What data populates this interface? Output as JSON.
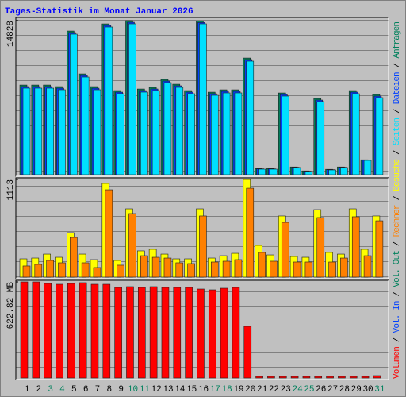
{
  "title": "Tages-Statistik im Monat Januar 2026",
  "legend_separator": "/",
  "categories": [
    "1",
    "2",
    "3",
    "4",
    "5",
    "6",
    "7",
    "8",
    "9",
    "10",
    "11",
    "12",
    "13",
    "14",
    "15",
    "16",
    "17",
    "18",
    "19",
    "20",
    "21",
    "22",
    "23",
    "24",
    "25",
    "26",
    "27",
    "28",
    "29",
    "30",
    "31"
  ],
  "category_colors": [
    "#000000",
    "#000000",
    "#00805c",
    "#00805c",
    "#000000",
    "#000000",
    "#000000",
    "#000000",
    "#000000",
    "#00805c",
    "#00805c",
    "#000000",
    "#000000",
    "#000000",
    "#000000",
    "#000000",
    "#00805c",
    "#00805c",
    "#000000",
    "#000000",
    "#000000",
    "#000000",
    "#000000",
    "#00805c",
    "#00805c",
    "#000000",
    "#000000",
    "#000000",
    "#000000",
    "#000000",
    "#00805c"
  ],
  "chart_data": [
    {
      "type": "bar",
      "ylim": [
        0,
        14828
      ],
      "yticks": [
        14828
      ],
      "series": [
        {
          "name": "Anfragen",
          "color": "#00805c",
          "values": [
            8631,
            8631,
            8631,
            8478,
            13829,
            9701,
            8478,
            14517,
            8096,
            14828,
            8249,
            8402,
            9166,
            8708,
            8096,
            14790,
            7943,
            8173,
            8173,
            11230,
            595,
            595,
            7867,
            748,
            366,
            7332,
            519,
            748,
            8096,
            1436,
            7714
          ]
        },
        {
          "name": "Dateien",
          "color": "#0040ff",
          "values": [
            8481,
            8481,
            8481,
            8328,
            13679,
            9551,
            8328,
            14367,
            7946,
            14672,
            8099,
            8252,
            9016,
            8558,
            7946,
            14650,
            7793,
            8023,
            8023,
            11080,
            565,
            565,
            7717,
            718,
            336,
            7182,
            489,
            718,
            7946,
            1406,
            7564
          ]
        },
        {
          "name": "Seiten",
          "color": "#00e0ff",
          "values": [
            8331,
            8331,
            8331,
            8178,
            13529,
            9401,
            8178,
            14217,
            7796,
            14522,
            7949,
            8102,
            8866,
            8408,
            7796,
            14522,
            7643,
            7873,
            7873,
            10930,
            535,
            535,
            7567,
            688,
            306,
            7032,
            459,
            688,
            7796,
            1376,
            7414
          ]
        }
      ]
    },
    {
      "type": "bar",
      "ylim": [
        0,
        1113
      ],
      "yticks": [
        1113
      ],
      "series": [
        {
          "name": "Besuche",
          "color": "#ffff00",
          "values": [
            208,
            217,
            262,
            226,
            507,
            262,
            199,
            1068,
            190,
            778,
            299,
            317,
            262,
            208,
            208,
            778,
            217,
            244,
            271,
            1113,
            362,
            253,
            697,
            235,
            226,
            769,
            281,
            262,
            778,
            317,
            697
          ]
        },
        {
          "name": "Rechner",
          "color": "#ff8000",
          "values": [
            127,
            145,
            190,
            163,
            452,
            163,
            109,
            995,
            136,
            724,
            244,
            226,
            217,
            163,
            154,
            697,
            172,
            181,
            199,
            1013,
            281,
            181,
            624,
            172,
            172,
            679,
            172,
            217,
            688,
            244,
            642
          ]
        }
      ]
    },
    {
      "type": "bar",
      "ylim": [
        0,
        622.82
      ],
      "yticks": [
        {
          "value": 622.82,
          "label": "622.82 MB"
        }
      ],
      "series": [
        {
          "name": "Volumen",
          "color": "#ff0000",
          "values": [
            622.82,
            622.82,
            612.5,
            607.4,
            612.5,
            617.7,
            607.4,
            607.4,
            586.8,
            591.9,
            586.8,
            591.9,
            586.8,
            586.8,
            586.8,
            576.5,
            571.3,
            581.6,
            586.8,
            334.6,
            10.3,
            10.3,
            10.3,
            10.3,
            10.3,
            10.3,
            10.3,
            10.3,
            10.3,
            10.3,
            15.4
          ]
        }
      ],
      "unplotted_series": [
        {
          "name": "Vol. In",
          "color": "#0040ff"
        },
        {
          "name": "Vol. Out",
          "color": "#00805c"
        }
      ]
    }
  ]
}
